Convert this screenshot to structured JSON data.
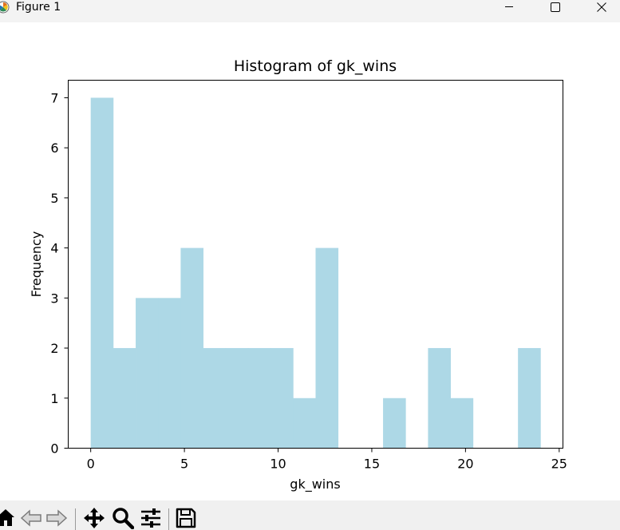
{
  "window": {
    "title": "Figure 1",
    "icon": "matplotlib-logo-icon",
    "controls": [
      "minimize-icon",
      "maximize-icon",
      "close-icon"
    ]
  },
  "toolbar": {
    "buttons": [
      {
        "name": "home-button",
        "icon": "home-icon"
      },
      {
        "name": "back-button",
        "icon": "arrow-left-icon"
      },
      {
        "name": "forward-button",
        "icon": "arrow-right-icon"
      },
      {
        "name": "pan-button",
        "icon": "move-icon"
      },
      {
        "name": "zoom-button",
        "icon": "magnifier-icon"
      },
      {
        "name": "configure-subplots-button",
        "icon": "sliders-icon"
      },
      {
        "name": "save-button",
        "icon": "floppy-disk-icon"
      }
    ]
  },
  "chart_data": {
    "type": "bar",
    "title": "Histogram of gk_wins",
    "xlabel": "gk_wins",
    "ylabel": "Frequency",
    "bar_color": "#add8e6",
    "bin_edges": [
      0,
      1.2,
      2.4,
      3.6,
      4.8,
      6.0,
      7.2,
      8.4,
      9.6,
      10.8,
      12.0,
      13.2,
      14.4,
      15.6,
      16.8,
      18.0,
      19.2,
      20.4,
      21.6,
      22.8,
      24.0
    ],
    "counts": [
      7,
      2,
      3,
      3,
      4,
      2,
      2,
      2,
      2,
      1,
      4,
      0,
      0,
      1,
      0,
      2,
      1,
      0,
      0,
      2
    ],
    "xlim": [
      -1.2,
      25.2
    ],
    "ylim": [
      0,
      7.35
    ],
    "xticks": [
      0,
      5,
      10,
      15,
      20,
      25
    ],
    "xtick_labels": [
      "0",
      "5",
      "10",
      "15",
      "20",
      "25"
    ],
    "yticks": [
      0,
      1,
      2,
      3,
      4,
      5,
      6,
      7
    ],
    "ytick_labels": [
      "0",
      "1",
      "2",
      "3",
      "4",
      "5",
      "6",
      "7"
    ],
    "grid": false,
    "legend": "none"
  }
}
